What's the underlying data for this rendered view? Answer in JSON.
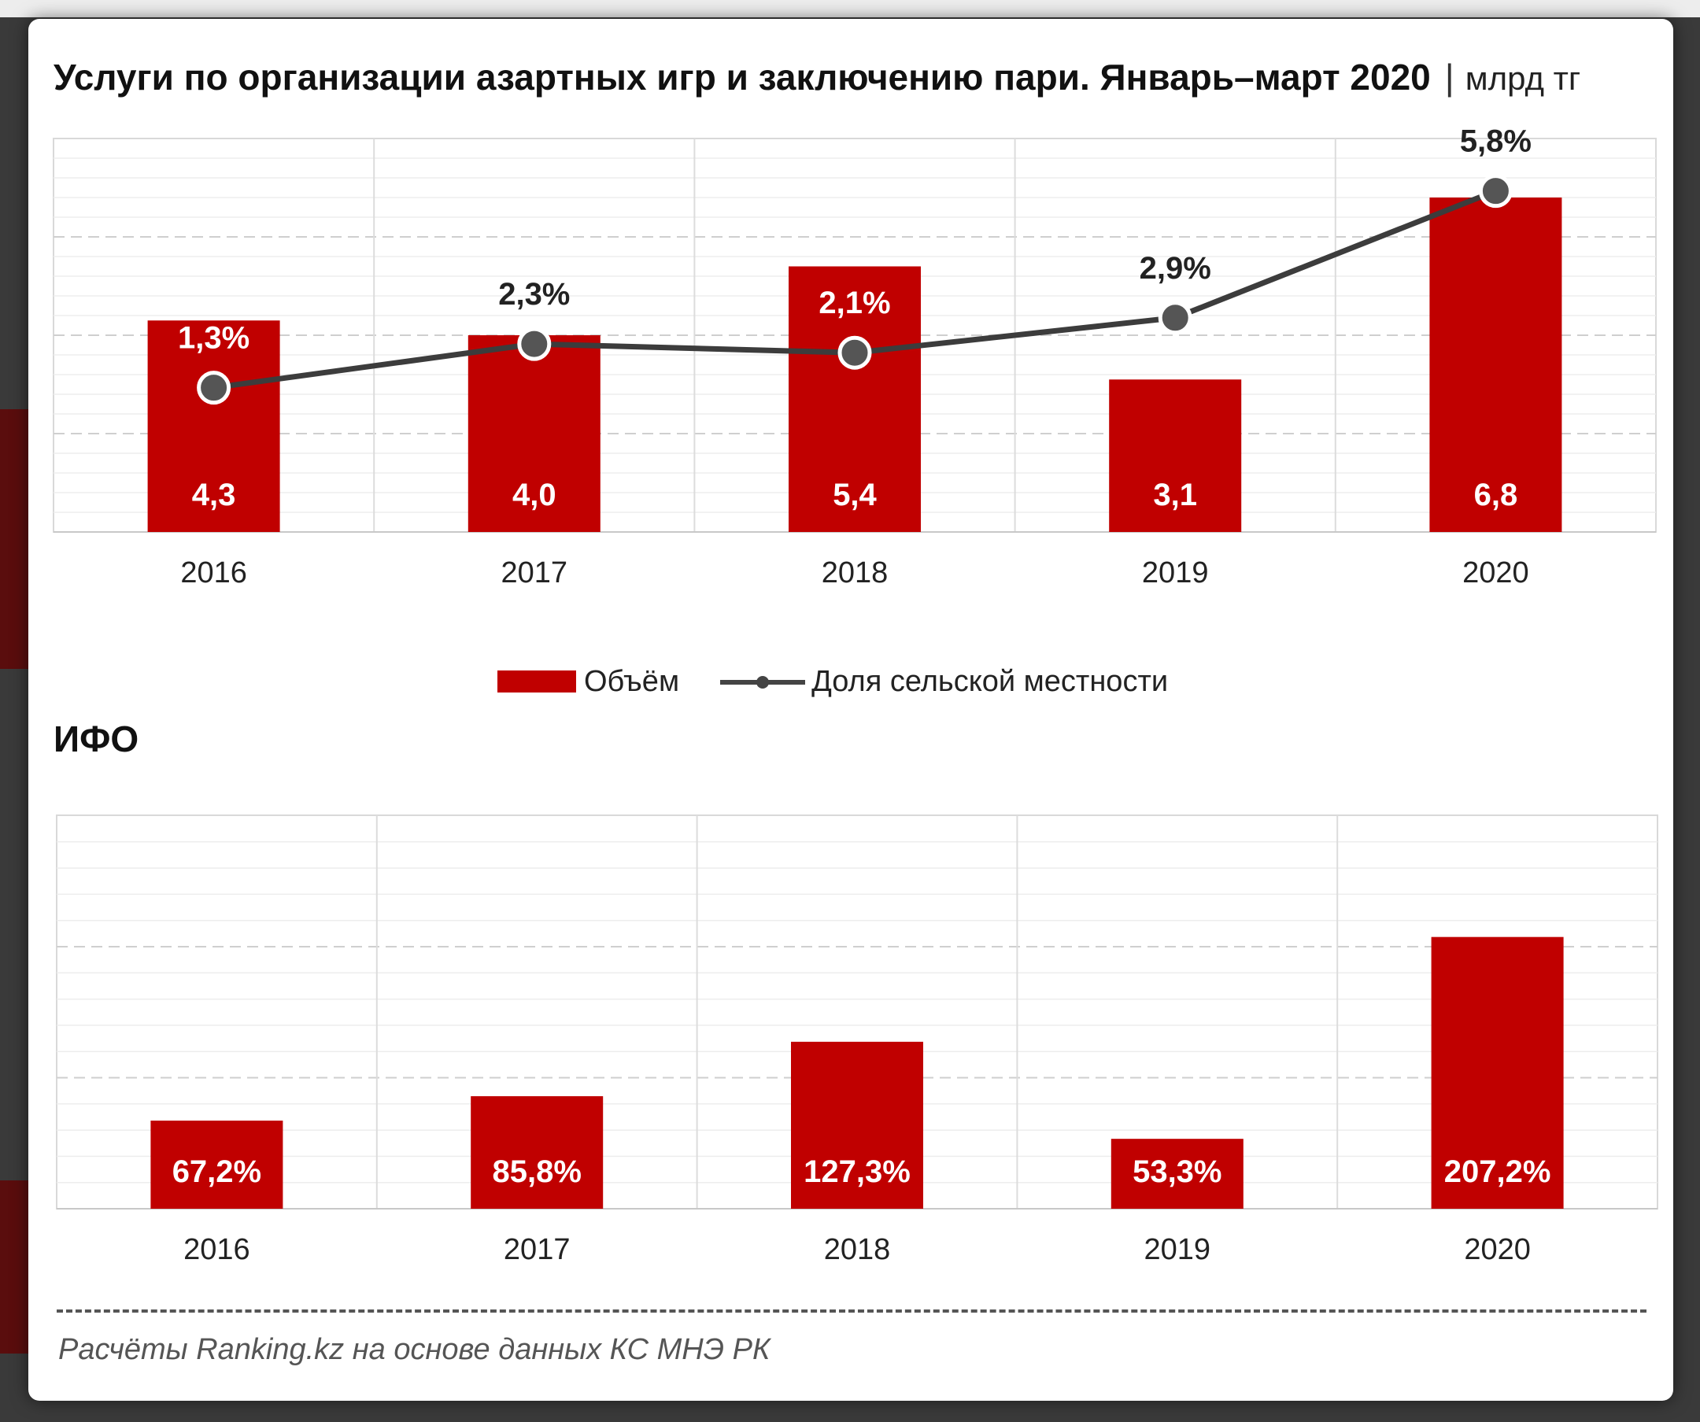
{
  "title": "Услуги по  организации азартных игр и заключению пари. Январь–март 2020",
  "unit": "млрд тг",
  "legend": {
    "bar": "Объём",
    "line": "Доля сельской местности"
  },
  "subtitle": "ИФО",
  "source": "Расчёты Ranking.kz на основе данных  КС МНЭ РК",
  "colors": {
    "bar": "#c00000",
    "line": "#3c3c3c",
    "marker": "#555555"
  },
  "chart_data": [
    {
      "type": "bar",
      "title": "Услуги по  организации азартных игр и заключению пари. Январь–март 2020",
      "categories": [
        "2016",
        "2017",
        "2018",
        "2019",
        "2020"
      ],
      "series": [
        {
          "name": "Объём",
          "type": "bar",
          "values": [
            4.3,
            4.0,
            5.4,
            3.1,
            6.8
          ],
          "labels": [
            "4,3",
            "4,0",
            "5,4",
            "3,1",
            "6,8"
          ]
        },
        {
          "name": "Доля сельской местности",
          "type": "line",
          "values": [
            1.3,
            2.3,
            2.1,
            2.9,
            5.8
          ],
          "labels": [
            "1,3%",
            "2,3%",
            "2,1%",
            "2,9%",
            "5,8%"
          ]
        }
      ],
      "ylim": [
        0,
        8
      ],
      "y2lim": [
        -2,
        7
      ],
      "grid": true,
      "legend_position": "bottom"
    },
    {
      "type": "bar",
      "title": "ИФО",
      "categories": [
        "2016",
        "2017",
        "2018",
        "2019",
        "2020"
      ],
      "series": [
        {
          "values": [
            67.2,
            85.8,
            127.3,
            53.3,
            207.2
          ],
          "labels": [
            "67,2%",
            "85,8%",
            "127,3%",
            "53,3%",
            "207,2%"
          ]
        }
      ],
      "ylim": [
        0,
        300
      ],
      "grid": true
    }
  ]
}
